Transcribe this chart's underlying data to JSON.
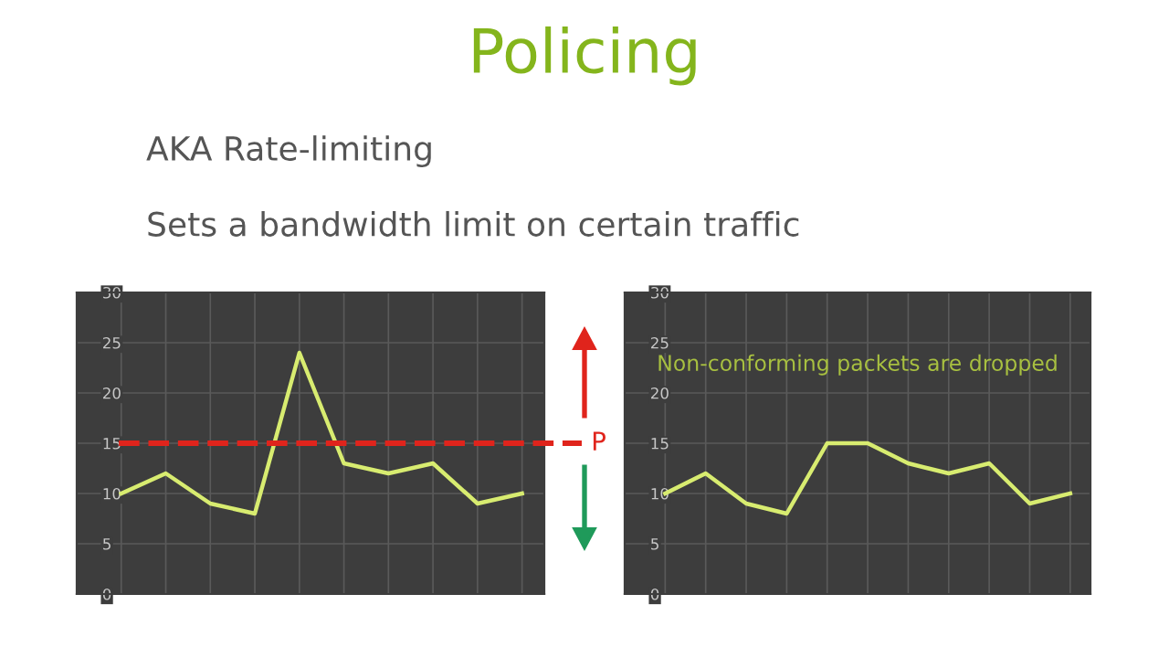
{
  "chart_data": [
    {
      "type": "line",
      "title": "Policing",
      "subtitle": "AKA Rate-limiting",
      "annotations": [
        "Sets a bandwidth limit on certain traffic"
      ],
      "categories": [
        null,
        null,
        null,
        null,
        null,
        null,
        null,
        null,
        null,
        null
      ],
      "series": [
        {
          "color": "#d8ec70",
          "values": [
            10,
            12,
            9,
            8,
            24,
            13,
            12,
            13,
            9,
            10
          ]
        }
      ],
      "ylim": [
        0,
        30
      ],
      "yticks": [
        0,
        5,
        10,
        15,
        20,
        25,
        30
      ],
      "grid": true,
      "tick_labels": "y",
      "marker": "none",
      "line_style": "solid",
      "ref_lines": [
        {
          "axis": "y",
          "value": 15,
          "label": "P",
          "color": "#e0241c",
          "line_style": "dashed"
        }
      ]
    },
    {
      "type": "line",
      "annotations": [
        "Non-conforming packets are dropped"
      ],
      "categories": [
        null,
        null,
        null,
        null,
        null,
        null,
        null,
        null,
        null,
        null,
        null
      ],
      "series": [
        {
          "color": "#d8ec70",
          "values": [
            10,
            12,
            9,
            8,
            15,
            15,
            13,
            12,
            13,
            9,
            10
          ]
        }
      ],
      "ylim": [
        0,
        30
      ],
      "yticks": [
        0,
        5,
        10,
        15,
        20,
        25,
        30
      ],
      "grid": true,
      "tick_labels": "y",
      "marker": "none",
      "line_style": "solid"
    }
  ]
}
